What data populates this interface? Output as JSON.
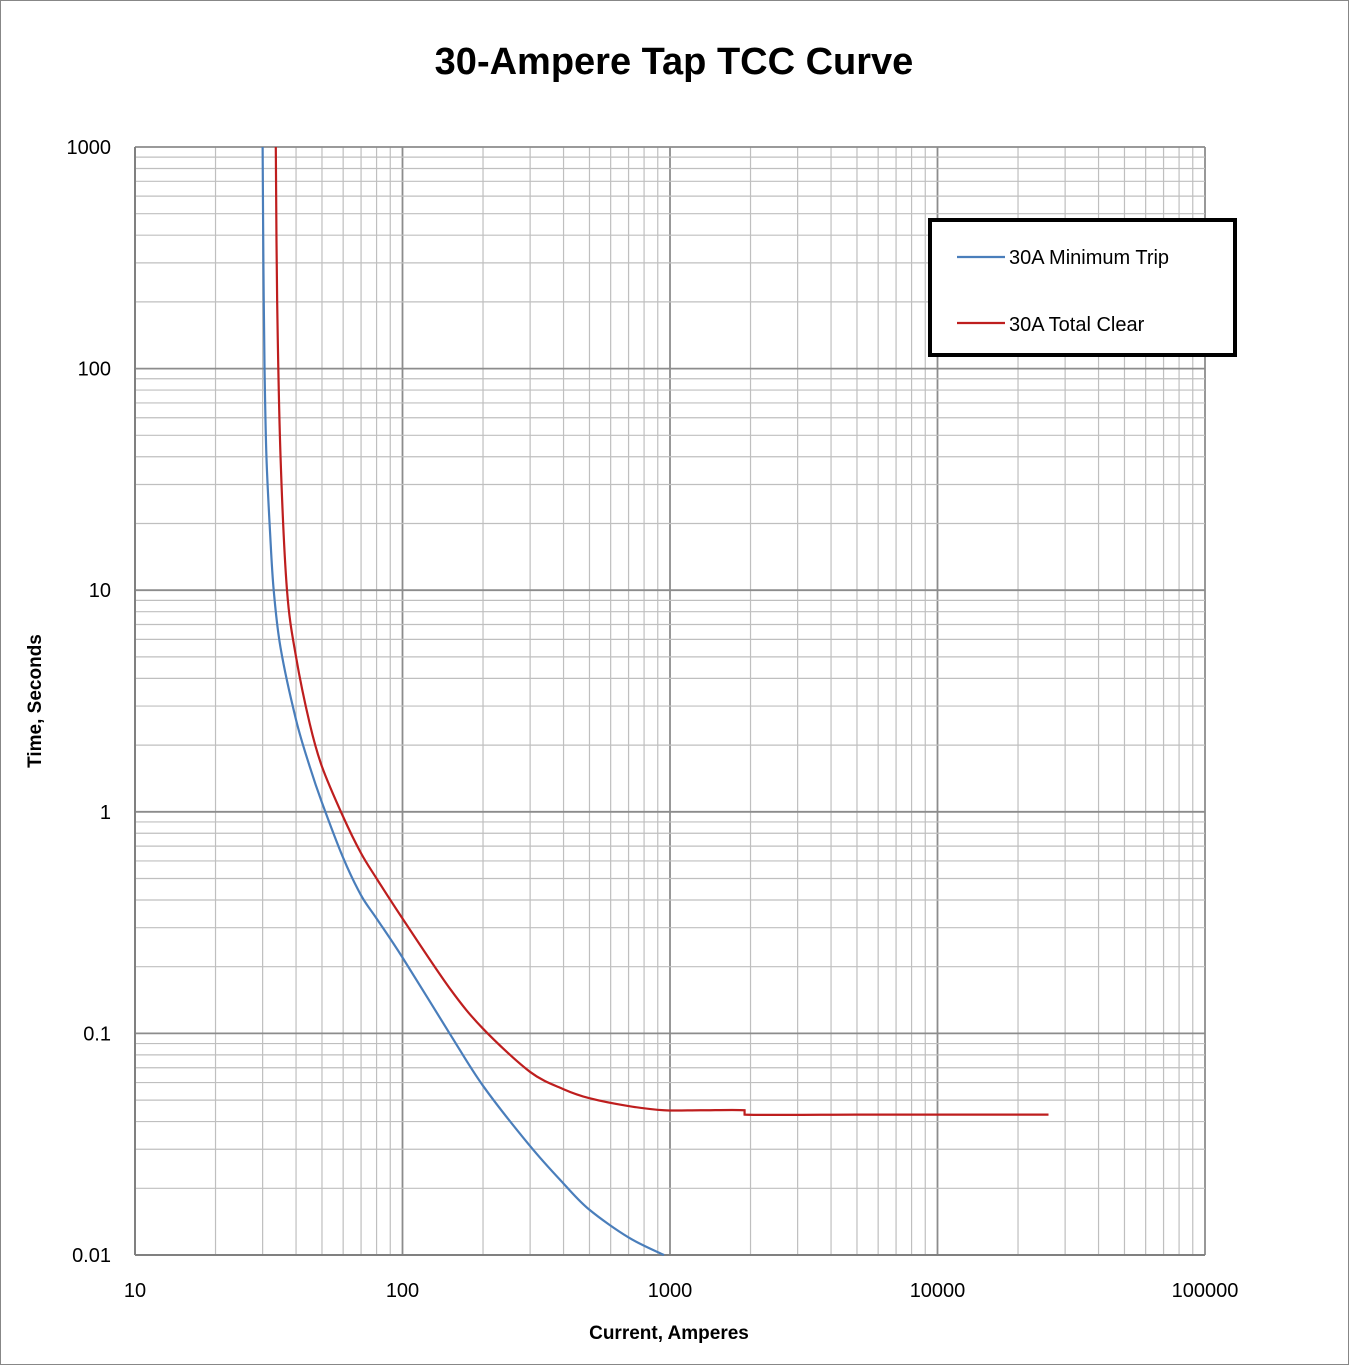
{
  "chart_data": {
    "type": "line",
    "title": "30-Ampere Tap TCC Curve",
    "xlabel": "Current, Amperes",
    "ylabel": "Time, Seconds",
    "x_scale": "log",
    "y_scale": "log",
    "xlim": [
      10,
      100000
    ],
    "ylim": [
      0.01,
      1000
    ],
    "x_ticks": [
      "10",
      "100",
      "1000",
      "10000",
      "100000"
    ],
    "y_ticks": [
      "1000",
      "100",
      "10",
      "1",
      "0.1",
      "0.01"
    ],
    "grid": true,
    "legend_position": "top-right",
    "series": [
      {
        "name": "30A Minimum Trip",
        "color": "#4a7ebb",
        "x": [
          30,
          30.2,
          30.5,
          31,
          32,
          33,
          35,
          40,
          45,
          50,
          60,
          70,
          80,
          100,
          150,
          200,
          300,
          400,
          500,
          700,
          950
        ],
        "y": [
          1000,
          300,
          100,
          40,
          18,
          10,
          5.5,
          2.6,
          1.6,
          1.1,
          0.62,
          0.42,
          0.33,
          0.22,
          0.1,
          0.058,
          0.031,
          0.021,
          0.016,
          0.012,
          0.01
        ]
      },
      {
        "name": "30A Total Clear",
        "color": "#be1e1e",
        "x": [
          33.6,
          34,
          35,
          37,
          40,
          45,
          50,
          60,
          70,
          80,
          100,
          150,
          200,
          300,
          400,
          500,
          700,
          950,
          1300,
          1900,
          1900,
          5000,
          10000,
          26000
        ],
        "y": [
          1000,
          200,
          40,
          10,
          5,
          2.5,
          1.6,
          0.95,
          0.65,
          0.5,
          0.33,
          0.16,
          0.105,
          0.067,
          0.056,
          0.051,
          0.047,
          0.045,
          0.045,
          0.045,
          0.043,
          0.043,
          0.043,
          0.043
        ]
      }
    ]
  }
}
